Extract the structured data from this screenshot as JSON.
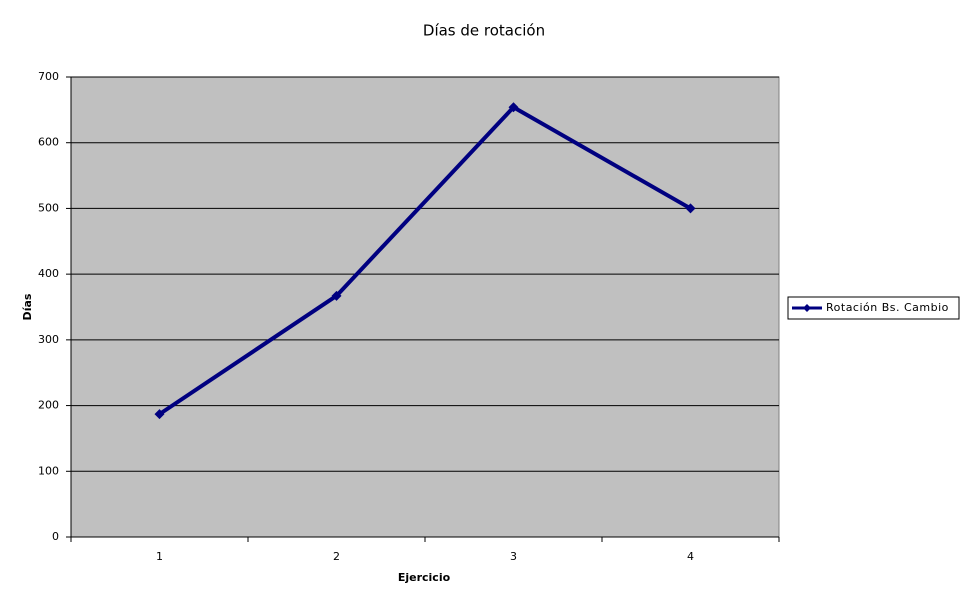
{
  "chart_data": {
    "type": "line",
    "title": "Días de rotación",
    "x_label": "Ejercicio",
    "y_label": "Días",
    "categories": [
      "1",
      "2",
      "3",
      "4"
    ],
    "series": [
      {
        "name": "Rotación Bs. Cambio",
        "color": "#000080",
        "values": [
          187,
          367,
          654,
          500
        ]
      }
    ],
    "ylim": [
      0,
      700
    ],
    "yticks": [
      0,
      100,
      200,
      300,
      400,
      500,
      600,
      700
    ],
    "grid": true,
    "legend": "right"
  }
}
